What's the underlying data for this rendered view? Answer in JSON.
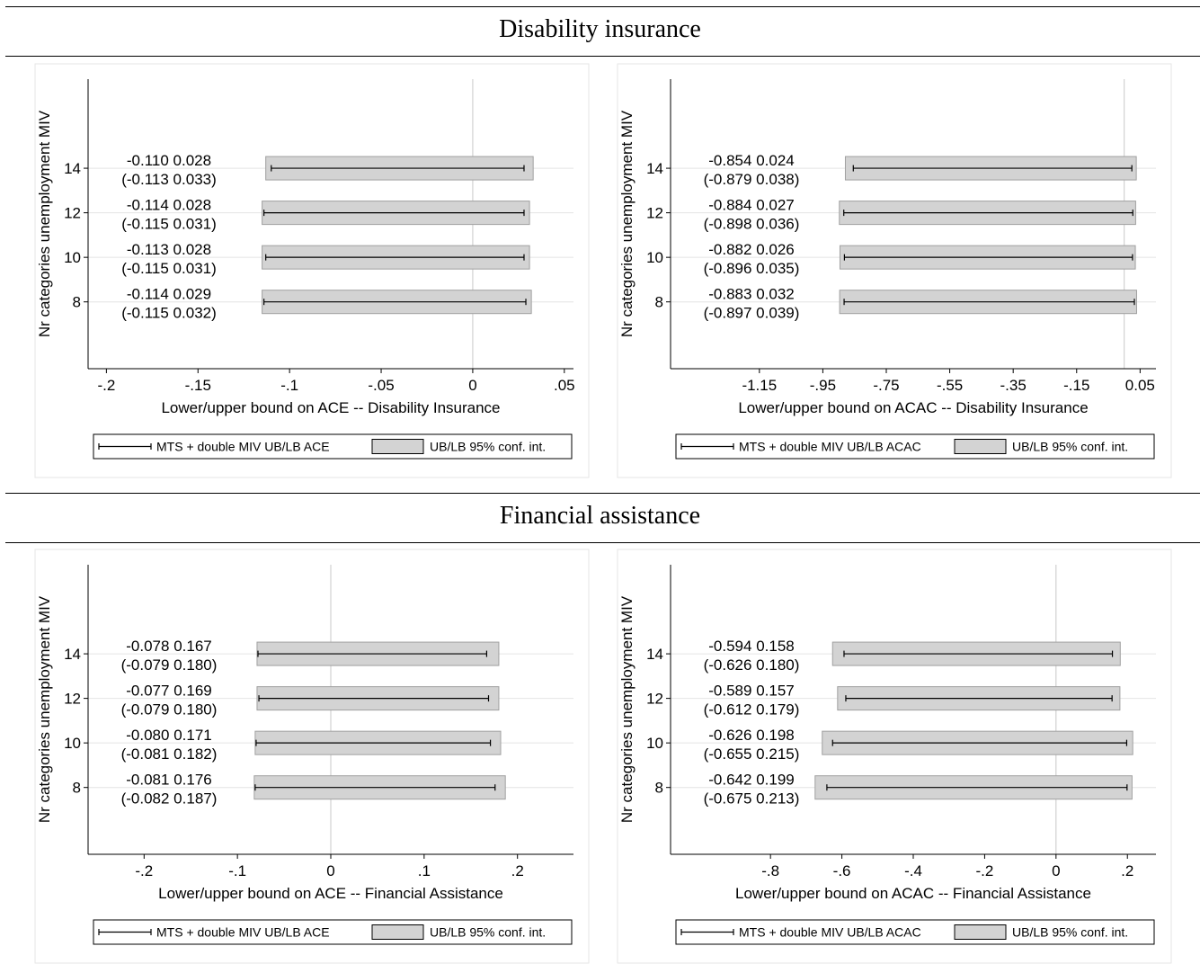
{
  "sections": [
    {
      "title": "Disability insurance"
    },
    {
      "title": "Financial assistance"
    }
  ],
  "chart_data": [
    {
      "type": "bar",
      "ylabel": "Nr categories unemployment MIV",
      "xlabel": "Lower/upper bound on ACE -- Disability Insurance",
      "xlim": [
        -0.21,
        0.055
      ],
      "xticks": [
        -0.2,
        -0.15,
        -0.1,
        -0.05,
        0,
        0.05
      ],
      "xtick_labels": [
        "-.2",
        "-.15",
        "-.1",
        "-.05",
        "0",
        ".05"
      ],
      "ylim": [
        5,
        18
      ],
      "yticks": [
        14,
        12,
        10,
        8
      ],
      "vline": 0,
      "rows": [
        {
          "cat": 14,
          "lb": -0.11,
          "ub": 0.028,
          "ci_lb": -0.113,
          "ci_ub": 0.033,
          "label1": "-0.110   0.028",
          "label2": "(-0.113   0.033)"
        },
        {
          "cat": 12,
          "lb": -0.114,
          "ub": 0.028,
          "ci_lb": -0.115,
          "ci_ub": 0.031,
          "label1": "-0.114   0.028",
          "label2": "(-0.115   0.031)"
        },
        {
          "cat": 10,
          "lb": -0.113,
          "ub": 0.028,
          "ci_lb": -0.115,
          "ci_ub": 0.031,
          "label1": "-0.113   0.028",
          "label2": "(-0.115   0.031)"
        },
        {
          "cat": 8,
          "lb": -0.114,
          "ub": 0.029,
          "ci_lb": -0.115,
          "ci_ub": 0.032,
          "label1": "-0.114   0.029",
          "label2": "(-0.115   0.032)"
        }
      ],
      "legend": [
        "MTS + double MIV UB/LB ACE",
        "UB/LB 95% conf. int."
      ],
      "legend_position": "bottom"
    },
    {
      "type": "bar",
      "ylabel": "Nr categories unemployment MIV",
      "xlabel": "Lower/upper bound on ACAC -- Disability Insurance",
      "xlim": [
        -1.43,
        0.1
      ],
      "xticks": [
        -1.15,
        -0.95,
        -0.75,
        -0.55,
        -0.35,
        -0.15,
        0.05
      ],
      "xtick_labels": [
        "-1.15",
        "-.95",
        "-.75",
        "-.55",
        "-.35",
        "-.15",
        "0.05"
      ],
      "ylim": [
        5,
        18
      ],
      "yticks": [
        14,
        12,
        10,
        8
      ],
      "vline": 0,
      "rows": [
        {
          "cat": 14,
          "lb": -0.854,
          "ub": 0.024,
          "ci_lb": -0.879,
          "ci_ub": 0.038,
          "label1": "-0.854   0.024",
          "label2": "(-0.879   0.038)"
        },
        {
          "cat": 12,
          "lb": -0.884,
          "ub": 0.027,
          "ci_lb": -0.898,
          "ci_ub": 0.036,
          "label1": "-0.884   0.027",
          "label2": "(-0.898   0.036)"
        },
        {
          "cat": 10,
          "lb": -0.882,
          "ub": 0.026,
          "ci_lb": -0.896,
          "ci_ub": 0.035,
          "label1": "-0.882   0.026",
          "label2": "(-0.896   0.035)"
        },
        {
          "cat": 8,
          "lb": -0.883,
          "ub": 0.032,
          "ci_lb": -0.897,
          "ci_ub": 0.039,
          "label1": "-0.883   0.032",
          "label2": "(-0.897   0.039)"
        }
      ],
      "legend": [
        "MTS + double MIV UB/LB ACAC",
        "UB/LB 95% conf. int."
      ],
      "legend_position": "bottom"
    },
    {
      "type": "bar",
      "ylabel": "Nr categories unemployment MIV",
      "xlabel": "Lower/upper bound on ACE -- Financial Assistance",
      "xlim": [
        -0.26,
        0.26
      ],
      "xticks": [
        -0.2,
        -0.1,
        0,
        0.1,
        0.2
      ],
      "xtick_labels": [
        "-.2",
        "-.1",
        "0",
        ".1",
        ".2"
      ],
      "ylim": [
        5,
        18
      ],
      "yticks": [
        14,
        12,
        10,
        8
      ],
      "vline": 0,
      "rows": [
        {
          "cat": 14,
          "lb": -0.078,
          "ub": 0.167,
          "ci_lb": -0.079,
          "ci_ub": 0.18,
          "label1": "-0.078   0.167",
          "label2": "(-0.079   0.180)"
        },
        {
          "cat": 12,
          "lb": -0.077,
          "ub": 0.169,
          "ci_lb": -0.079,
          "ci_ub": 0.18,
          "label1": "-0.077   0.169",
          "label2": "(-0.079   0.180)"
        },
        {
          "cat": 10,
          "lb": -0.08,
          "ub": 0.171,
          "ci_lb": -0.081,
          "ci_ub": 0.182,
          "label1": "-0.080   0.171",
          "label2": "(-0.081   0.182)"
        },
        {
          "cat": 8,
          "lb": -0.081,
          "ub": 0.176,
          "ci_lb": -0.082,
          "ci_ub": 0.187,
          "label1": "-0.081   0.176",
          "label2": "(-0.082   0.187)"
        }
      ],
      "legend": [
        "MTS + double MIV UB/LB ACE",
        "UB/LB 95% conf. int."
      ],
      "legend_position": "bottom"
    },
    {
      "type": "bar",
      "ylabel": "Nr categories unemployment MIV",
      "xlabel": "Lower/upper bound on ACAC -- Financial Assistance",
      "xlim": [
        -1.08,
        0.28
      ],
      "xticks": [
        -0.8,
        -0.6,
        -0.4,
        -0.2,
        0,
        0.2
      ],
      "xtick_labels": [
        "-.8",
        "-.6",
        "-.4",
        "-.2",
        "0",
        ".2"
      ],
      "ylim": [
        5,
        18
      ],
      "yticks": [
        14,
        12,
        10,
        8
      ],
      "vline": 0,
      "rows": [
        {
          "cat": 14,
          "lb": -0.594,
          "ub": 0.158,
          "ci_lb": -0.626,
          "ci_ub": 0.18,
          "label1": "-0.594   0.158",
          "label2": "(-0.626   0.180)"
        },
        {
          "cat": 12,
          "lb": -0.589,
          "ub": 0.157,
          "ci_lb": -0.612,
          "ci_ub": 0.179,
          "label1": "-0.589   0.157",
          "label2": "(-0.612   0.179)"
        },
        {
          "cat": 10,
          "lb": -0.626,
          "ub": 0.198,
          "ci_lb": -0.655,
          "ci_ub": 0.215,
          "label1": "-0.626   0.198",
          "label2": "(-0.655   0.215)"
        },
        {
          "cat": 8,
          "lb": -0.642,
          "ub": 0.199,
          "ci_lb": -0.675,
          "ci_ub": 0.213,
          "label1": "-0.642   0.199",
          "label2": "(-0.675   0.213)"
        }
      ],
      "legend": [
        "MTS + double MIV UB/LB ACAC",
        "UB/LB 95% conf. int."
      ],
      "legend_position": "bottom"
    }
  ]
}
